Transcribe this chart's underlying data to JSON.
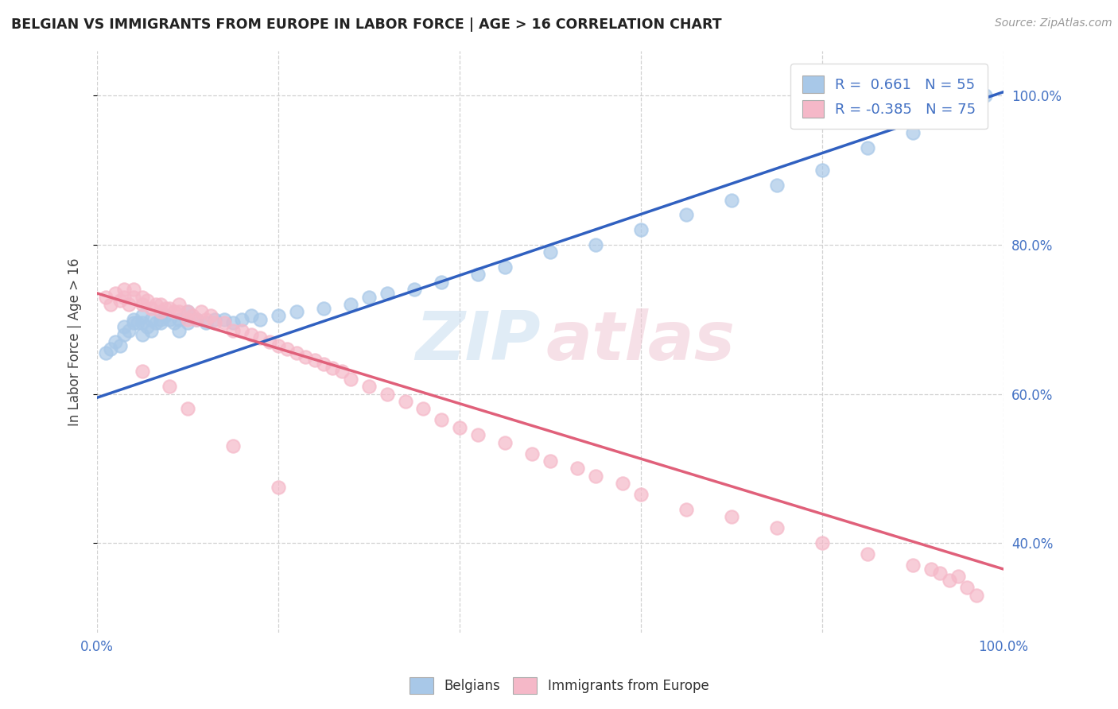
{
  "title": "BELGIAN VS IMMIGRANTS FROM EUROPE IN LABOR FORCE | AGE > 16 CORRELATION CHART",
  "source": "Source: ZipAtlas.com",
  "ylabel": "In Labor Force | Age > 16",
  "xlim": [
    0.0,
    1.0
  ],
  "ylim": [
    0.28,
    1.06
  ],
  "belgians_color": "#a8c8e8",
  "immigrants_color": "#f5b8c8",
  "line_blue": "#3060c0",
  "line_pink": "#e0607a",
  "blue_line_x": [
    0.0,
    1.0
  ],
  "blue_line_y": [
    0.595,
    1.005
  ],
  "pink_line_x": [
    0.0,
    1.0
  ],
  "pink_line_y": [
    0.735,
    0.365
  ],
  "belgians_scatter_x": [
    0.01,
    0.015,
    0.02,
    0.025,
    0.03,
    0.03,
    0.035,
    0.04,
    0.04,
    0.045,
    0.05,
    0.05,
    0.05,
    0.055,
    0.06,
    0.06,
    0.065,
    0.07,
    0.07,
    0.075,
    0.08,
    0.085,
    0.09,
    0.09,
    0.1,
    0.1,
    0.11,
    0.12,
    0.13,
    0.14,
    0.15,
    0.16,
    0.17,
    0.18,
    0.2,
    0.22,
    0.25,
    0.28,
    0.3,
    0.32,
    0.35,
    0.38,
    0.42,
    0.45,
    0.5,
    0.55,
    0.6,
    0.65,
    0.7,
    0.75,
    0.8,
    0.85,
    0.9,
    0.95,
    0.98
  ],
  "belgians_scatter_y": [
    0.655,
    0.66,
    0.67,
    0.665,
    0.68,
    0.69,
    0.685,
    0.695,
    0.7,
    0.695,
    0.68,
    0.695,
    0.705,
    0.69,
    0.685,
    0.7,
    0.695,
    0.695,
    0.7,
    0.705,
    0.7,
    0.695,
    0.685,
    0.7,
    0.695,
    0.71,
    0.7,
    0.695,
    0.7,
    0.7,
    0.695,
    0.7,
    0.705,
    0.7,
    0.705,
    0.71,
    0.715,
    0.72,
    0.73,
    0.735,
    0.74,
    0.75,
    0.76,
    0.77,
    0.79,
    0.8,
    0.82,
    0.84,
    0.86,
    0.88,
    0.9,
    0.93,
    0.95,
    0.97,
    1.0
  ],
  "immigrants_scatter_x": [
    0.01,
    0.015,
    0.02,
    0.025,
    0.03,
    0.03,
    0.035,
    0.04,
    0.04,
    0.05,
    0.05,
    0.055,
    0.06,
    0.065,
    0.07,
    0.07,
    0.075,
    0.08,
    0.085,
    0.09,
    0.09,
    0.1,
    0.1,
    0.105,
    0.11,
    0.115,
    0.12,
    0.125,
    0.13,
    0.14,
    0.15,
    0.16,
    0.17,
    0.18,
    0.19,
    0.2,
    0.21,
    0.22,
    0.23,
    0.24,
    0.25,
    0.26,
    0.27,
    0.28,
    0.3,
    0.32,
    0.34,
    0.36,
    0.38,
    0.4,
    0.42,
    0.45,
    0.48,
    0.5,
    0.53,
    0.55,
    0.58,
    0.6,
    0.65,
    0.7,
    0.75,
    0.8,
    0.85,
    0.9,
    0.92,
    0.93,
    0.94,
    0.95,
    0.96,
    0.97,
    0.2,
    0.1,
    0.15,
    0.05,
    0.08
  ],
  "immigrants_scatter_y": [
    0.73,
    0.72,
    0.735,
    0.725,
    0.73,
    0.74,
    0.72,
    0.73,
    0.74,
    0.72,
    0.73,
    0.725,
    0.715,
    0.72,
    0.71,
    0.72,
    0.715,
    0.715,
    0.71,
    0.71,
    0.72,
    0.7,
    0.71,
    0.705,
    0.7,
    0.71,
    0.7,
    0.705,
    0.695,
    0.695,
    0.685,
    0.685,
    0.68,
    0.675,
    0.67,
    0.665,
    0.66,
    0.655,
    0.65,
    0.645,
    0.64,
    0.635,
    0.63,
    0.62,
    0.61,
    0.6,
    0.59,
    0.58,
    0.565,
    0.555,
    0.545,
    0.535,
    0.52,
    0.51,
    0.5,
    0.49,
    0.48,
    0.465,
    0.445,
    0.435,
    0.42,
    0.4,
    0.385,
    0.37,
    0.365,
    0.36,
    0.35,
    0.355,
    0.34,
    0.33,
    0.475,
    0.58,
    0.53,
    0.63,
    0.61
  ]
}
